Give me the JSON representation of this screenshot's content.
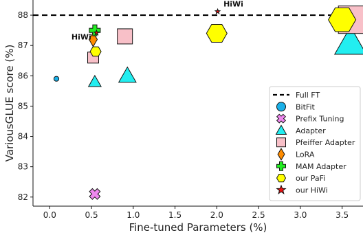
{
  "chart_data": {
    "type": "scatter",
    "title": "",
    "xlabel": "Fine-tuned Parameters (%)",
    "ylabel": "VariousGLUE score (%)",
    "xlim": [
      -0.2,
      3.75
    ],
    "ylim": [
      81.7,
      88.5
    ],
    "xticks": [
      0.0,
      0.5,
      1.0,
      1.5,
      2.0,
      2.5,
      3.0,
      3.5
    ],
    "xtick_labels": [
      "0.0",
      "0.5",
      "1.0",
      "1.5",
      "2.0",
      "2.5",
      "3.0",
      "3.5"
    ],
    "yticks": [
      82,
      83,
      84,
      85,
      86,
      87,
      88
    ],
    "ytick_labels": [
      "82",
      "83",
      "84",
      "85",
      "86",
      "87",
      "88"
    ],
    "grid": false,
    "legend_position": "bottom-right",
    "reference_line": {
      "name": "Full FT",
      "y": 88.0,
      "style": "dashed",
      "color": "#000000"
    },
    "series": [
      {
        "name": "BitFit",
        "marker": "circle",
        "color": "#1ab0e8",
        "points": [
          {
            "x": 0.08,
            "y": 85.9,
            "size": 1
          }
        ]
      },
      {
        "name": "Prefix Tuning",
        "marker": "x",
        "color": "#ee88ee",
        "points": [
          {
            "x": 0.54,
            "y": 82.1,
            "size": 2
          }
        ]
      },
      {
        "name": "Adapter",
        "marker": "triangle",
        "color": "#22eef0",
        "points": [
          {
            "x": 0.54,
            "y": 85.8,
            "size": 2
          },
          {
            "x": 0.93,
            "y": 86.0,
            "size": 3
          },
          {
            "x": 3.6,
            "y": 87.1,
            "size": 5
          }
        ]
      },
      {
        "name": "Pfeiffer Adapter",
        "marker": "square",
        "color": "#f8c0c8",
        "points": [
          {
            "x": 0.52,
            "y": 86.6,
            "size": 2
          },
          {
            "x": 0.9,
            "y": 87.3,
            "size": 3
          },
          {
            "x": 3.62,
            "y": 87.85,
            "size": 5
          }
        ]
      },
      {
        "name": "LoRA",
        "marker": "diamond",
        "color": "#ff8c00",
        "points": [
          {
            "x": 0.52,
            "y": 87.2,
            "size": 2
          }
        ]
      },
      {
        "name": "MAM Adapter",
        "marker": "plus",
        "color": "#22ee22",
        "points": [
          {
            "x": 0.54,
            "y": 87.5,
            "size": 2
          }
        ]
      },
      {
        "name": "our PaFi",
        "marker": "hexagon",
        "color": "#ffff00",
        "points": [
          {
            "x": 0.55,
            "y": 86.8,
            "size": 2
          },
          {
            "x": 2.0,
            "y": 87.4,
            "size": 4
          },
          {
            "x": 3.5,
            "y": 87.85,
            "size": 5
          }
        ]
      },
      {
        "name": "our HiWi",
        "marker": "star",
        "color": "#ee1111",
        "points": [
          {
            "x": 0.56,
            "y": 87.42,
            "size": 1
          },
          {
            "x": 2.01,
            "y": 88.12,
            "size": 1
          }
        ]
      }
    ],
    "annotations": [
      {
        "text": "HiWi",
        "x": 0.26,
        "y": 87.2
      },
      {
        "text": "HiWi",
        "x": 2.08,
        "y": 88.28
      }
    ]
  }
}
